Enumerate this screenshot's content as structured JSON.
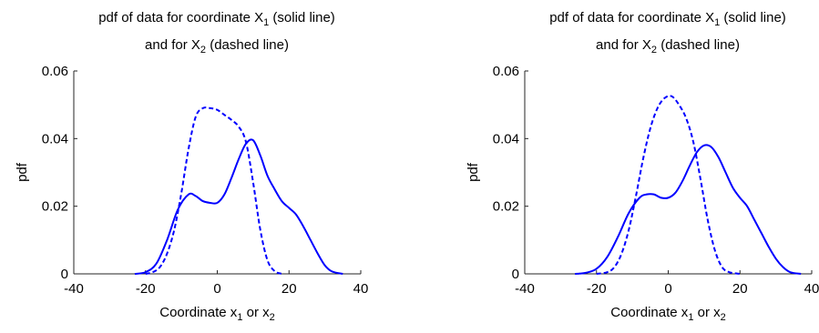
{
  "chart_data": [
    {
      "type": "line",
      "title_line1": {
        "pre": "pdf of data for coordinate X",
        "sub": "1",
        "post": " (solid line)"
      },
      "title_line2": {
        "pre": "and for X",
        "sub": "2",
        "post": " (dashed line)"
      },
      "xlabel": {
        "pre": "Coordinate x",
        "sub1": "1",
        "mid": " or x",
        "sub2": "2"
      },
      "ylabel": "pdf",
      "xlim": [
        -40,
        40
      ],
      "ylim": [
        0,
        0.06
      ],
      "xticks": [
        -40,
        -20,
        0,
        20,
        40
      ],
      "yticks": [
        0,
        0.02,
        0.04,
        0.06
      ],
      "xtick_labels": [
        "-40",
        "-20",
        "0",
        "20",
        "40"
      ],
      "ytick_labels": [
        "0",
        "0.02",
        "0.04",
        "0.06"
      ],
      "grid": false,
      "series": [
        {
          "style": "solid",
          "x": [
            -23,
            -20,
            -17,
            -14,
            -11,
            -8,
            -6,
            -4,
            -2,
            0,
            2,
            4,
            6,
            8,
            10,
            12,
            14,
            16,
            18,
            20,
            22,
            24,
            26,
            28,
            30,
            32,
            35
          ],
          "y": [
            0,
            0.0005,
            0.003,
            0.01,
            0.019,
            0.0235,
            0.023,
            0.0215,
            0.021,
            0.021,
            0.0235,
            0.0285,
            0.034,
            0.0385,
            0.0395,
            0.035,
            0.029,
            0.025,
            0.0215,
            0.0195,
            0.0175,
            0.014,
            0.01,
            0.006,
            0.0025,
            0.0007,
            0
          ]
        },
        {
          "style": "dashed",
          "x": [
            -20,
            -18,
            -16,
            -14,
            -12,
            -10,
            -8,
            -6,
            -4,
            -2,
            0,
            2,
            4,
            6,
            8,
            10,
            12,
            14,
            16,
            18
          ],
          "y": [
            0,
            0.0005,
            0.002,
            0.006,
            0.013,
            0.024,
            0.037,
            0.0465,
            0.049,
            0.049,
            0.0485,
            0.047,
            0.0455,
            0.0435,
            0.039,
            0.027,
            0.013,
            0.004,
            0.0008,
            0
          ]
        }
      ],
      "line_color": "#0000ff"
    },
    {
      "type": "line",
      "title_line1": {
        "pre": "pdf of data for coordinate X",
        "sub": "1",
        "post": " (solid line)"
      },
      "title_line2": {
        "pre": "and for X",
        "sub": "2",
        "post": " (dashed line)"
      },
      "xlabel": {
        "pre": "Coordinate x",
        "sub1": "1",
        "mid": " or x",
        "sub2": "2"
      },
      "ylabel": "pdf",
      "xlim": [
        -40,
        40
      ],
      "ylim": [
        0,
        0.06
      ],
      "xticks": [
        -40,
        -20,
        0,
        20,
        40
      ],
      "yticks": [
        0,
        0.02,
        0.04,
        0.06
      ],
      "xtick_labels": [
        "-40",
        "-20",
        "0",
        "20",
        "40"
      ],
      "ytick_labels": [
        "0",
        "0.02",
        "0.04",
        "0.06"
      ],
      "grid": false,
      "series": [
        {
          "style": "solid",
          "x": [
            -26,
            -23,
            -20,
            -17,
            -14,
            -11,
            -8,
            -6,
            -4,
            -2,
            0,
            2,
            4,
            6,
            8,
            10,
            12,
            14,
            16,
            18,
            20,
            22,
            24,
            26,
            28,
            30,
            32,
            34,
            37
          ],
          "y": [
            0,
            0.0003,
            0.0015,
            0.005,
            0.011,
            0.018,
            0.0225,
            0.0235,
            0.0235,
            0.0225,
            0.0225,
            0.024,
            0.0275,
            0.032,
            0.036,
            0.038,
            0.0375,
            0.0345,
            0.03,
            0.0255,
            0.0225,
            0.02,
            0.016,
            0.012,
            0.008,
            0.0045,
            0.002,
            0.0005,
            0
          ]
        },
        {
          "style": "dashed",
          "x": [
            -20,
            -17,
            -15,
            -13,
            -11,
            -9,
            -7,
            -5,
            -3,
            -1,
            1,
            3,
            5,
            7,
            9,
            11,
            13,
            15,
            17,
            20
          ],
          "y": [
            0,
            0.0005,
            0.002,
            0.006,
            0.013,
            0.023,
            0.034,
            0.043,
            0.049,
            0.052,
            0.0525,
            0.05,
            0.046,
            0.039,
            0.028,
            0.016,
            0.007,
            0.002,
            0.0005,
            0
          ]
        }
      ],
      "line_color": "#0000ff"
    }
  ]
}
